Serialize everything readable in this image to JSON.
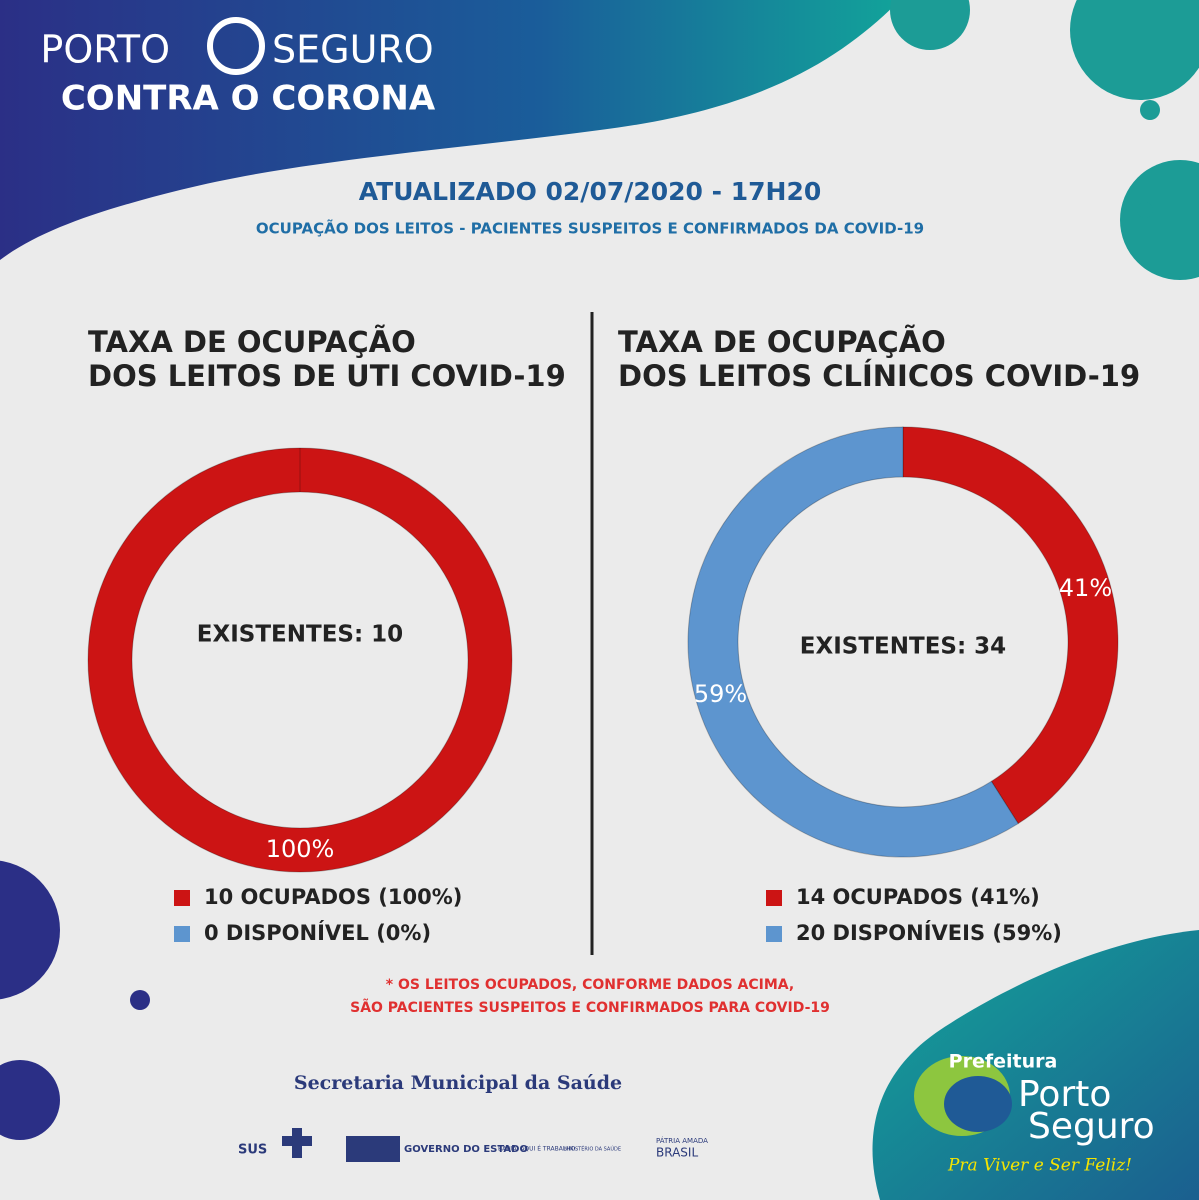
{
  "header": {
    "brand_left": "PORTO",
    "brand_right": "SEGURO",
    "brand_line2": "CONTRA O CORONA"
  },
  "title": "ATUALIZADO 02/07/2020 - 17H20",
  "subtitle": "OCUPAÇÃO DOS LEITOS - PACIENTES SUSPEITOS E CONFIRMADOS DA COVID-19",
  "chart_data": [
    {
      "type": "donut",
      "title_lines": [
        "TAXA DE OCUPAÇÃO",
        "DOS LEITOS DE UTI COVID-19"
      ],
      "center_label": "EXISTENTES: 10",
      "categories": [
        "10 OCUPADOS (100%)",
        "0 DISPONÍVEL (0%)"
      ],
      "values": [
        100,
        0
      ],
      "value_labels": [
        "100%",
        null
      ],
      "colors": [
        "#cc1414",
        "#5d95cf"
      ]
    },
    {
      "type": "donut",
      "title_lines": [
        "TAXA DE OCUPAÇÃO",
        "DOS LEITOS CLÍNICOS COVID-19"
      ],
      "center_label": "EXISTENTES: 34",
      "categories": [
        "14 OCUPADOS (41%)",
        "20 DISPONÍVEIS (59%)"
      ],
      "values": [
        41,
        59
      ],
      "value_labels": [
        "41%",
        "59%"
      ],
      "colors": [
        "#cc1414",
        "#5d95cf"
      ]
    }
  ],
  "note_lines": [
    "* OS LEITOS OCUPADOS, CONFORME DADOS ACIMA,",
    "SÃO PACIENTES SUSPEITOS E CONFIRMADOS PARA COVID-19"
  ],
  "footer": {
    "secretaria": "Secretaria Municipal da Saúde",
    "sus": "SUS",
    "governo": "GOVERNO DO ESTADO",
    "bahia": "BAHIA, AQUI É TRABALHO.",
    "ministerio": "MINISTÉRIO DA SAÚDE",
    "patria": "PÁTRIA AMADA",
    "brasil": "BRASIL",
    "prefeitura": "Prefeitura",
    "porto": "Porto",
    "seguro": "Seguro",
    "slogan": "Pra Viver e Ser Feliz!"
  }
}
